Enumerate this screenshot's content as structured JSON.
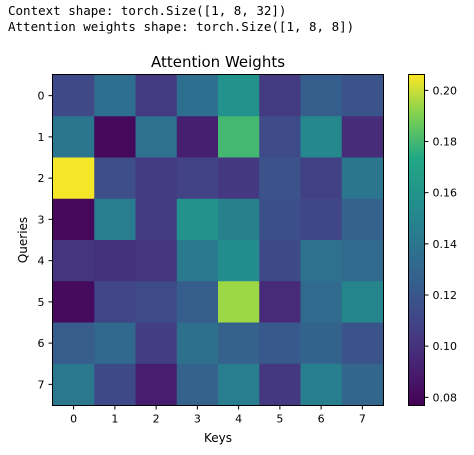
{
  "output": {
    "lines": [
      "Context shape: torch.Size([1, 8, 32])",
      "Attention weights shape: torch.Size([1, 8, 8])"
    ]
  },
  "chart_data": {
    "type": "heatmap",
    "title": "Attention Weights",
    "xlabel": "Keys",
    "ylabel": "Queries",
    "x_categories": [
      "0",
      "1",
      "2",
      "3",
      "4",
      "5",
      "6",
      "7"
    ],
    "y_categories": [
      "0",
      "1",
      "2",
      "3",
      "4",
      "5",
      "6",
      "7"
    ],
    "values": [
      [
        0.112,
        0.135,
        0.104,
        0.135,
        0.158,
        0.104,
        0.125,
        0.118
      ],
      [
        0.14,
        0.08,
        0.137,
        0.091,
        0.18,
        0.114,
        0.152,
        0.097
      ],
      [
        0.205,
        0.115,
        0.104,
        0.108,
        0.103,
        0.119,
        0.107,
        0.14
      ],
      [
        0.08,
        0.145,
        0.104,
        0.158,
        0.147,
        0.116,
        0.111,
        0.127
      ],
      [
        0.101,
        0.1,
        0.101,
        0.142,
        0.155,
        0.113,
        0.137,
        0.133
      ],
      [
        0.082,
        0.11,
        0.114,
        0.125,
        0.194,
        0.096,
        0.133,
        0.15
      ],
      [
        0.124,
        0.131,
        0.106,
        0.136,
        0.127,
        0.122,
        0.128,
        0.119
      ],
      [
        0.141,
        0.113,
        0.09,
        0.127,
        0.145,
        0.103,
        0.146,
        0.13
      ]
    ],
    "colormap": "viridis",
    "vmin": 0.077,
    "vmax": 0.206,
    "colorbar_ticks": [
      "0.08",
      "0.10",
      "0.12",
      "0.14",
      "0.16",
      "0.18",
      "0.20"
    ],
    "colorbar_tick_values": [
      0.08,
      0.1,
      0.12,
      0.14,
      0.16,
      0.18,
      0.2
    ]
  }
}
